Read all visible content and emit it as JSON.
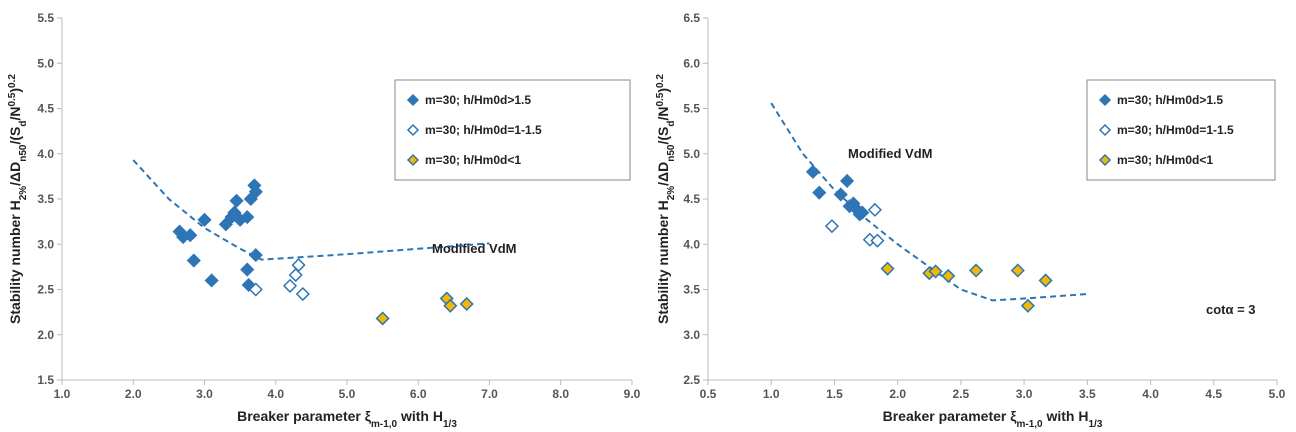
{
  "chart_data": [
    {
      "type": "scatter",
      "xlabel": [
        {
          "text": "Breaker parameter ξ"
        },
        {
          "text": "m-1,0",
          "shift": "sub"
        },
        {
          "text": " with H"
        },
        {
          "text": "1/3",
          "shift": "sub"
        }
      ],
      "ylabel": [
        {
          "text": "Stability number H"
        },
        {
          "text": "2%",
          "shift": "sub"
        },
        {
          "text": "/ΔD"
        },
        {
          "text": "n50",
          "shift": "sub"
        },
        {
          "text": "/(S"
        },
        {
          "text": "d",
          "shift": "sub"
        },
        {
          "text": "/N"
        },
        {
          "text": "0.5",
          "shift": "super"
        },
        {
          "text": ")"
        },
        {
          "text": "0.2",
          "shift": "super"
        }
      ],
      "xlim": [
        1,
        9
      ],
      "xticks": [
        {
          "value": 1,
          "label": "1.0"
        },
        {
          "value": 2,
          "label": "2.0"
        },
        {
          "value": 3,
          "label": "3.0"
        },
        {
          "value": 4,
          "label": "4.0"
        },
        {
          "value": 5,
          "label": "5.0"
        },
        {
          "value": 6,
          "label": "6.0"
        },
        {
          "value": 7,
          "label": "7.0"
        },
        {
          "value": 8,
          "label": "8.0"
        },
        {
          "value": 9,
          "label": "9.0"
        }
      ],
      "ylim": [
        1.5,
        5.5
      ],
      "yticks": [
        1.5,
        {
          "value": 2,
          "label": "2.0"
        },
        2.5,
        {
          "value": 3,
          "label": "3.0"
        },
        3.5,
        {
          "value": 4,
          "label": "4.0"
        },
        4.5,
        {
          "value": 5,
          "label": "5.0"
        },
        5.5
      ],
      "legend": "upper right",
      "series": [
        {
          "name": "m=30; h/Hm0d>1.5",
          "color": "#2E75B6",
          "marker_fill": "#2E75B6",
          "x": [
            2.65,
            2.7,
            2.8,
            2.85,
            3.0,
            3.1,
            3.3,
            3.38,
            3.42,
            3.45,
            3.5,
            3.6,
            3.6,
            3.62,
            3.65,
            3.7,
            3.72,
            3.72
          ],
          "y": [
            3.14,
            3.08,
            3.1,
            2.82,
            3.27,
            2.6,
            3.22,
            3.3,
            3.35,
            3.48,
            3.27,
            3.3,
            2.72,
            2.55,
            3.5,
            3.65,
            3.58,
            2.88
          ]
        },
        {
          "name": "m=30; h/Hm0d=1-1.5",
          "color": "#2E75B6",
          "marker_fill": "#ffffff",
          "x": [
            4.2,
            4.28,
            4.32,
            4.38,
            3.72
          ],
          "y": [
            2.54,
            2.66,
            2.77,
            2.45,
            2.5
          ]
        },
        {
          "name": "m=30; h/Hm0d<1",
          "color": "#2E75B6",
          "marker_fill": "#F5B800",
          "x": [
            5.5,
            6.4,
            6.45,
            6.68
          ],
          "y": [
            2.18,
            2.4,
            2.32,
            2.34
          ]
        }
      ],
      "curve": {
        "color": "#2E75B6",
        "dashed": true,
        "x": [
          2.0,
          2.5,
          3.0,
          3.5,
          3.8,
          4.0,
          5.0,
          6.0,
          7.0
        ],
        "y": [
          3.93,
          3.5,
          3.18,
          2.95,
          2.83,
          2.84,
          2.89,
          2.95,
          3.01
        ]
      },
      "annotations": [
        "Modified VdM"
      ]
    },
    {
      "type": "scatter",
      "xlabel": [
        {
          "text": "Breaker parameter ξ"
        },
        {
          "text": "m-1,0",
          "shift": "sub"
        },
        {
          "text": " with H"
        },
        {
          "text": "1/3",
          "shift": "sub"
        }
      ],
      "ylabel": [
        {
          "text": "Stability number H"
        },
        {
          "text": "2%",
          "shift": "sub"
        },
        {
          "text": "/ΔD"
        },
        {
          "text": "n50",
          "shift": "sub"
        },
        {
          "text": "/(S"
        },
        {
          "text": "d",
          "shift": "sub"
        },
        {
          "text": "/N"
        },
        {
          "text": "0.5",
          "shift": "super"
        },
        {
          "text": ")"
        },
        {
          "text": "0.2",
          "shift": "super"
        }
      ],
      "xlim": [
        0.5,
        5
      ],
      "xticks": [
        0.5,
        {
          "value": 1,
          "label": "1.0"
        },
        1.5,
        {
          "value": 2,
          "label": "2.0"
        },
        2.5,
        {
          "value": 3,
          "label": "3.0"
        },
        3.5,
        {
          "value": 4,
          "label": "4.0"
        },
        4.5,
        {
          "value": 5,
          "label": "5.0"
        }
      ],
      "ylim": [
        2.5,
        6.5
      ],
      "yticks": [
        2.5,
        {
          "value": 3,
          "label": "3.0"
        },
        3.5,
        {
          "value": 4,
          "label": "4.0"
        },
        4.5,
        {
          "value": 5,
          "label": "5.0"
        },
        5.5,
        {
          "value": 6,
          "label": "6.0"
        },
        6.5
      ],
      "legend": "upper right",
      "series": [
        {
          "name": "m=30; h/Hm0d>1.5",
          "color": "#2E75B6",
          "marker_fill": "#2E75B6",
          "x": [
            1.33,
            1.38,
            1.55,
            1.6,
            1.62,
            1.65,
            1.68,
            1.7,
            1.72
          ],
          "y": [
            4.8,
            4.57,
            4.55,
            4.7,
            4.42,
            4.45,
            4.38,
            4.33,
            4.35
          ]
        },
        {
          "name": "m=30; h/Hm0d=1-1.5",
          "color": "#2E75B6",
          "marker_fill": "#ffffff",
          "x": [
            1.48,
            1.78,
            1.82,
            1.84
          ],
          "y": [
            4.2,
            4.05,
            4.38,
            4.04
          ]
        },
        {
          "name": "m=30; h/Hm0d<1",
          "color": "#2E75B6",
          "marker_fill": "#F5B800",
          "x": [
            1.92,
            2.25,
            2.3,
            2.4,
            2.62,
            2.95,
            3.03,
            3.17
          ],
          "y": [
            3.73,
            3.68,
            3.7,
            3.65,
            3.71,
            3.71,
            3.32,
            3.6
          ]
        }
      ],
      "curve": {
        "color": "#2E75B6",
        "dashed": true,
        "x": [
          1.0,
          1.25,
          1.5,
          1.75,
          2.0,
          2.25,
          2.5,
          2.75,
          3.0,
          3.5
        ],
        "y": [
          5.56,
          5.0,
          4.6,
          4.28,
          4.0,
          3.75,
          3.5,
          3.38,
          3.4,
          3.45
        ]
      },
      "annotations": [
        "Modified VdM",
        "cotα = 3"
      ]
    }
  ]
}
